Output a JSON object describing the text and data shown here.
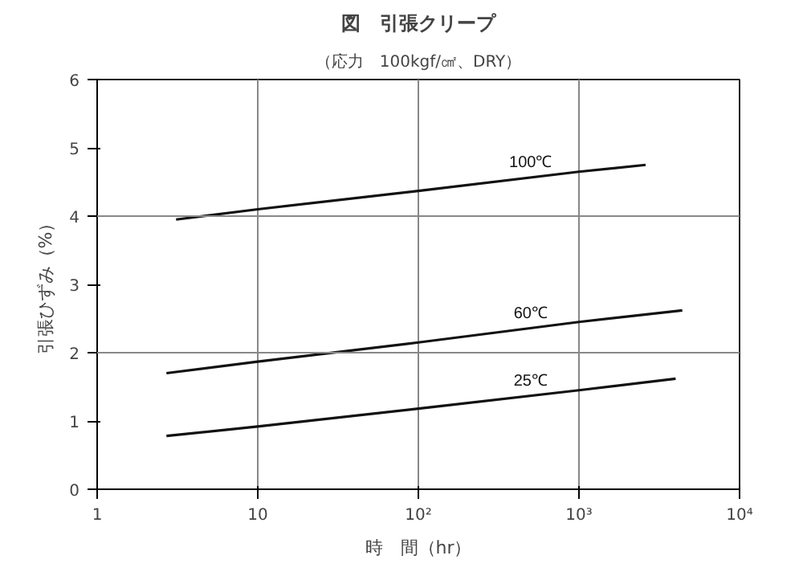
{
  "chart_data": {
    "type": "line",
    "title": "図　引張クリープ",
    "subtitle": "（応力　100kgf/㎠、DRY）",
    "xlabel": "時　間（hr）",
    "ylabel": "引張ひずみ（%）",
    "log": "x",
    "xlim": [
      1,
      10000
    ],
    "xticks": [
      1,
      10,
      {
        "value": 100,
        "label": "10²"
      },
      {
        "value": 1000,
        "label": "10³"
      },
      {
        "value": 10000,
        "label": "10⁴"
      }
    ],
    "ylim": [
      0,
      6
    ],
    "yticks": [
      0,
      1,
      2,
      3,
      4,
      5,
      6
    ],
    "grid": "x",
    "legend": false,
    "marker": "none",
    "line_style": "solid",
    "ref_lines": [
      {
        "axis": "y",
        "value": 2,
        "label": null,
        "color": "#888888"
      },
      {
        "axis": "y",
        "value": 4,
        "label": null,
        "color": "#888888"
      }
    ],
    "series": [
      {
        "name": "100℃",
        "color": "#111111",
        "x": [
          3.1,
          10,
          100,
          1000,
          2600
        ],
        "values": [
          3.95,
          4.1,
          4.37,
          4.65,
          4.75
        ]
      },
      {
        "name": "60℃",
        "color": "#111111",
        "x": [
          2.7,
          10,
          100,
          1000,
          4400
        ],
        "values": [
          1.7,
          1.87,
          2.15,
          2.45,
          2.62
        ]
      },
      {
        "name": "25℃",
        "color": "#111111",
        "x": [
          2.7,
          10,
          100,
          1000,
          4000
        ],
        "values": [
          0.78,
          0.92,
          1.18,
          1.45,
          1.62
        ]
      }
    ]
  }
}
